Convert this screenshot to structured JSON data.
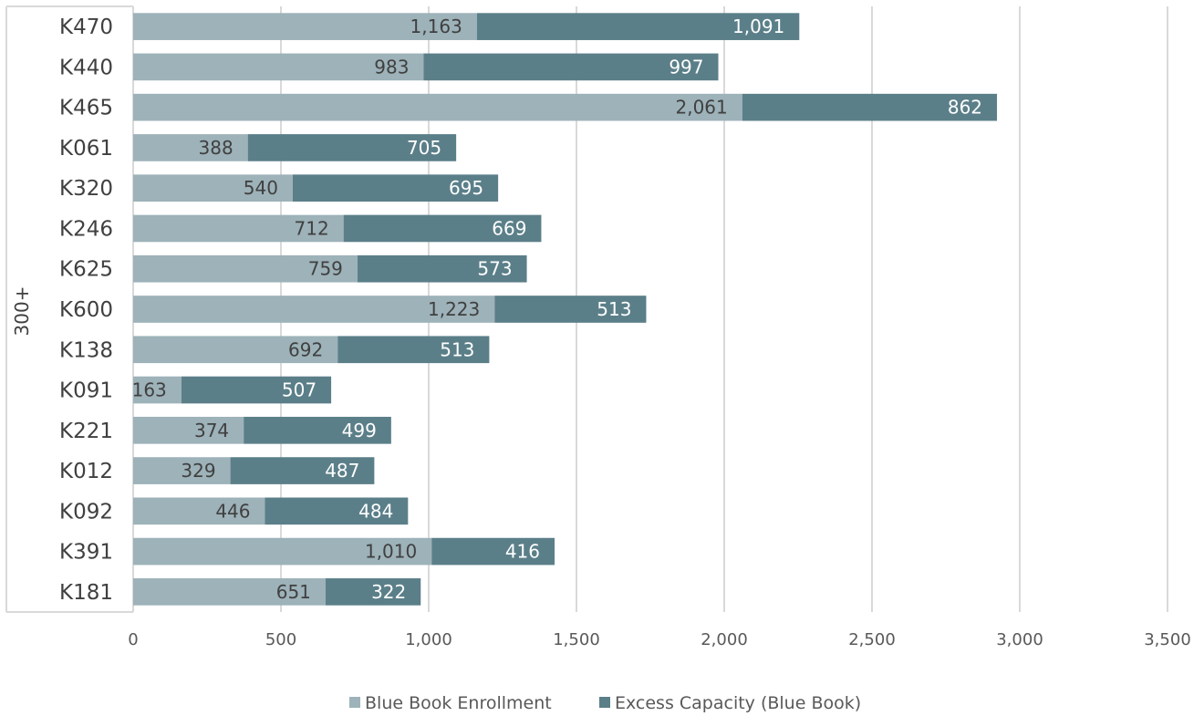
{
  "chart_data": {
    "type": "bar",
    "orientation": "horizontal",
    "stacked": true,
    "group_label": "300+",
    "categories": [
      "K470",
      "K440",
      "K465",
      "K061",
      "K320",
      "K246",
      "K625",
      "K600",
      "K138",
      "K091",
      "K221",
      "K012",
      "K092",
      "K391",
      "K181"
    ],
    "series": [
      {
        "name": "Blue Book Enrollment",
        "color": "#9db2b9",
        "label_color": "#404040",
        "values": [
          1163,
          983,
          2061,
          388,
          540,
          712,
          759,
          1223,
          692,
          163,
          374,
          329,
          446,
          1010,
          651
        ],
        "labels": [
          "1,163",
          "983",
          "2,061",
          "388",
          "540",
          "712",
          "759",
          "1,223",
          "692",
          "163",
          "374",
          "329",
          "446",
          "1,010",
          "651"
        ]
      },
      {
        "name": "Excess Capacity (Blue Book)",
        "color": "#5b7f89",
        "label_color": "#ffffff",
        "values": [
          1091,
          997,
          862,
          705,
          695,
          669,
          573,
          513,
          513,
          507,
          499,
          487,
          484,
          416,
          322
        ],
        "labels": [
          "1,091",
          "997",
          "862",
          "705",
          "695",
          "669",
          "573",
          "513",
          "513",
          "507",
          "499",
          "487",
          "484",
          "416",
          "322"
        ]
      }
    ],
    "x_ticks": [
      0,
      500,
      1000,
      1500,
      2000,
      2500,
      3000,
      3500
    ],
    "x_tick_labels": [
      "0",
      "500",
      "1,000",
      "1,500",
      "2,000",
      "2,500",
      "3,000",
      "3,500"
    ],
    "xlim": [
      0,
      3500
    ],
    "grid": "vertical",
    "legend_position": "bottom"
  }
}
